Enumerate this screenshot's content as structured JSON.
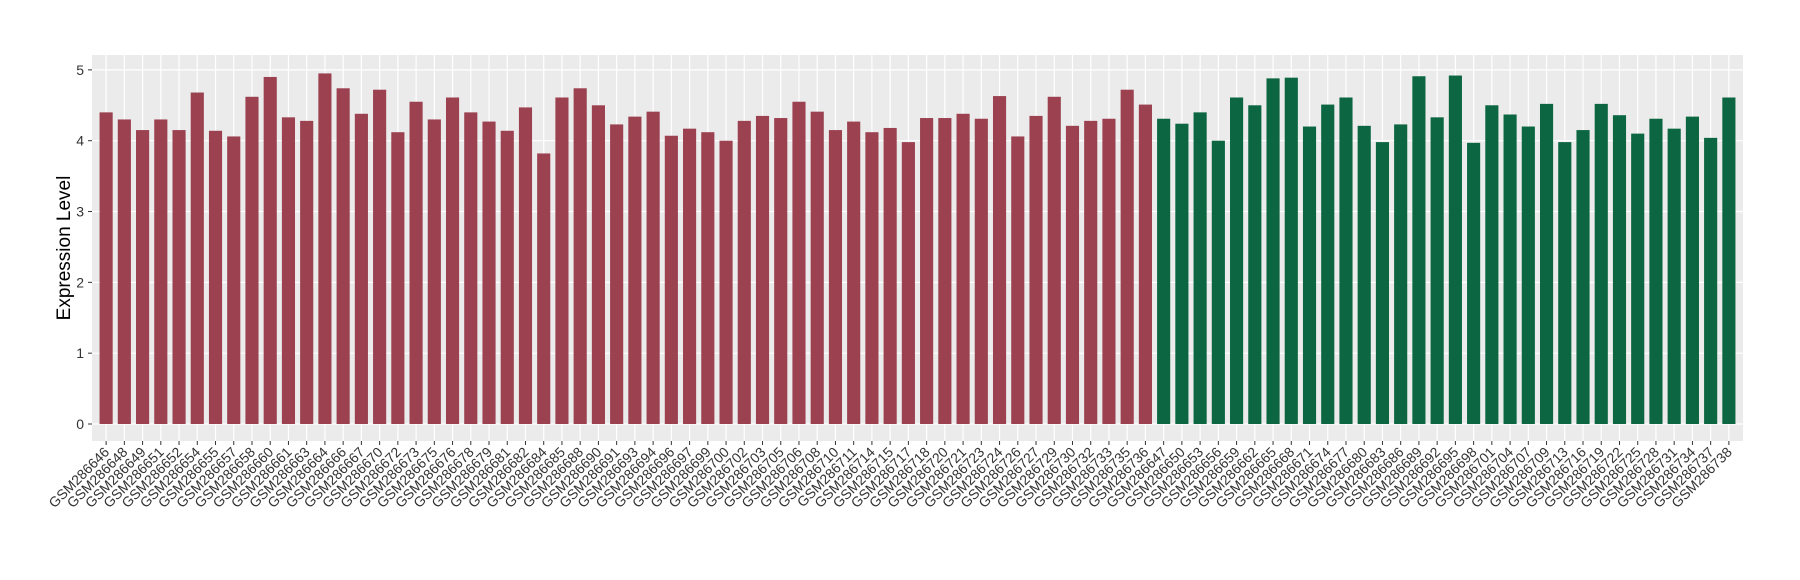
{
  "chart_data": {
    "type": "bar",
    "y_label": "Expression Level",
    "categories": [
      "GSM286646",
      "GSM286648",
      "GSM286649",
      "GSM286651",
      "GSM286652",
      "GSM286654",
      "GSM286655",
      "GSM286657",
      "GSM286658",
      "GSM286660",
      "GSM286661",
      "GSM286663",
      "GSM286664",
      "GSM286666",
      "GSM286667",
      "GSM286670",
      "GSM286672",
      "GSM286673",
      "GSM286675",
      "GSM286676",
      "GSM286678",
      "GSM286679",
      "GSM286681",
      "GSM286682",
      "GSM286684",
      "GSM286685",
      "GSM286688",
      "GSM286690",
      "GSM286691",
      "GSM286693",
      "GSM286694",
      "GSM286696",
      "GSM286697",
      "GSM286699",
      "GSM286700",
      "GSM286702",
      "GSM286703",
      "GSM286705",
      "GSM286706",
      "GSM286708",
      "GSM286710",
      "GSM286711",
      "GSM286714",
      "GSM286715",
      "GSM286717",
      "GSM286718",
      "GSM286720",
      "GSM286721",
      "GSM286723",
      "GSM286724",
      "GSM286726",
      "GSM286727",
      "GSM286729",
      "GSM286730",
      "GSM286732",
      "GSM286733",
      "GSM286735",
      "GSM286736",
      "GSM286647",
      "GSM286650",
      "GSM286653",
      "GSM286656",
      "GSM286659",
      "GSM286662",
      "GSM286665",
      "GSM286668",
      "GSM286671",
      "GSM286674",
      "GSM286677",
      "GSM286680",
      "GSM286683",
      "GSM286686",
      "GSM286689",
      "GSM286692",
      "GSM286695",
      "GSM286698",
      "GSM286701",
      "GSM286704",
      "GSM286707",
      "GSM286709",
      "GSM286713",
      "GSM286716",
      "GSM286719",
      "GSM286722",
      "GSM286725",
      "GSM286728",
      "GSM286731",
      "GSM286734",
      "GSM286737",
      "GSM286738"
    ],
    "series": [
      {
        "color": "#9b4150",
        "values": [
          4.4,
          4.3,
          4.15,
          4.3,
          4.15,
          4.68,
          4.14,
          4.06,
          4.62,
          4.9,
          4.33,
          4.28,
          4.95,
          4.74,
          4.38,
          4.72,
          4.12,
          4.55,
          4.3,
          4.61,
          4.4,
          4.27,
          4.14,
          4.47,
          3.82,
          4.61,
          4.74,
          4.5,
          4.23,
          4.34,
          4.41,
          4.07,
          4.17,
          4.12,
          4.0,
          4.28,
          4.35,
          4.32,
          4.55,
          4.41,
          4.15,
          4.27,
          4.12,
          4.18,
          3.98,
          4.32,
          4.32,
          4.38,
          4.31,
          4.63,
          4.06,
          4.35,
          4.62,
          4.21,
          4.28,
          4.31,
          4.72,
          4.51,
          null,
          null,
          null,
          null,
          null,
          null,
          null,
          null,
          null,
          null,
          null,
          null,
          null,
          null,
          null,
          null,
          null,
          null,
          null,
          null,
          null,
          null,
          null,
          null,
          null,
          null,
          null,
          null,
          null,
          null,
          null,
          null
        ]
      },
      {
        "color": "#0b6641",
        "values": [
          null,
          null,
          null,
          null,
          null,
          null,
          null,
          null,
          null,
          null,
          null,
          null,
          null,
          null,
          null,
          null,
          null,
          null,
          null,
          null,
          null,
          null,
          null,
          null,
          null,
          null,
          null,
          null,
          null,
          null,
          null,
          null,
          null,
          null,
          null,
          null,
          null,
          null,
          null,
          null,
          null,
          null,
          null,
          null,
          null,
          null,
          null,
          null,
          null,
          null,
          null,
          null,
          null,
          null,
          null,
          null,
          null,
          null,
          4.31,
          4.24,
          4.4,
          4.0,
          4.61,
          4.5,
          4.88,
          4.89,
          4.2,
          4.51,
          4.61,
          4.21,
          3.98,
          4.23,
          4.91,
          4.33,
          4.92,
          3.97,
          4.5,
          4.37,
          4.2,
          4.52,
          3.98,
          4.15,
          4.52,
          4.36,
          4.1,
          4.31,
          4.17,
          4.34,
          4.04,
          4.61
        ]
      }
    ],
    "ylim": [
      -0.24,
      5.21
    ],
    "yticks": [
      0,
      1,
      2,
      3,
      4,
      5
    ],
    "grid": true
  }
}
